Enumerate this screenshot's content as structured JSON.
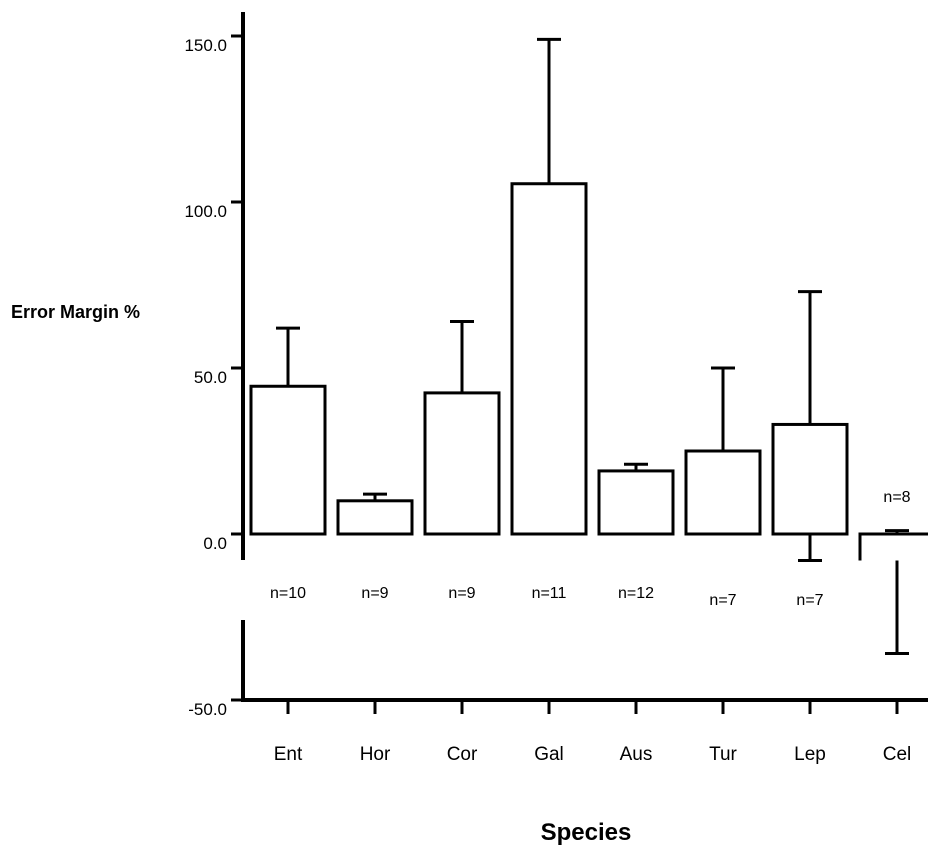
{
  "chart_data": {
    "type": "bar",
    "categories": [
      "Ent",
      "Hor",
      "Cor",
      "Gal",
      "Aus",
      "Tur",
      "Lep",
      "Cel"
    ],
    "values": [
      44.5,
      10,
      42.5,
      105.5,
      19,
      25,
      33,
      -8
    ],
    "error_upper": [
      62,
      12,
      64,
      149,
      21,
      50,
      73,
      1
    ],
    "error_lower": [
      null,
      null,
      null,
      null,
      null,
      null,
      -8,
      -36
    ],
    "n_labels": [
      "n=10",
      "n=9",
      "n=9",
      "n=11",
      "n=12",
      "n=7",
      "n=7",
      "n=8"
    ],
    "xlabel": "Species",
    "ylabel": "Error Margin %",
    "ylim": [
      -50,
      150
    ],
    "yticks": [
      150,
      100,
      50,
      0,
      -50
    ],
    "ytick_labels": [
      "150.0",
      "100.0",
      "50.0",
      "0.0",
      "-50.0"
    ],
    "grid": false,
    "bar_fill": "#ffffff",
    "bar_stroke": "#000000"
  }
}
